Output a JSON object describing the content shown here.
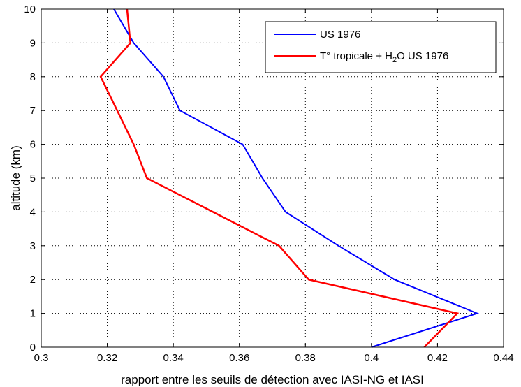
{
  "chart_data": {
    "type": "line",
    "title": "",
    "xlabel": "rapport entre les seuils de détection avec IASI-NG et IASI",
    "ylabel": "altitude (km)",
    "xlim": [
      0.3,
      0.44
    ],
    "ylim": [
      0,
      10
    ],
    "xticks": [
      0.3,
      0.32,
      0.34,
      0.36,
      0.38,
      0.4,
      0.42,
      0.44
    ],
    "xtick_labels": [
      "0.3",
      "0.32",
      "0.34",
      "0.36",
      "0.38",
      "0.4",
      "0.42",
      "0.44"
    ],
    "yticks": [
      0,
      1,
      2,
      3,
      4,
      5,
      6,
      7,
      8,
      9,
      10
    ],
    "ytick_labels": [
      "0",
      "1",
      "2",
      "3",
      "4",
      "5",
      "6",
      "7",
      "8",
      "9",
      "10"
    ],
    "grid": true,
    "legend_position": "top-right",
    "series": [
      {
        "name": "US 1976",
        "color": "#0000ff",
        "points": [
          {
            "x": 0.4,
            "y": 0
          },
          {
            "x": 0.432,
            "y": 1
          },
          {
            "x": 0.407,
            "y": 2
          },
          {
            "x": 0.39,
            "y": 3
          },
          {
            "x": 0.374,
            "y": 4
          },
          {
            "x": 0.367,
            "y": 5
          },
          {
            "x": 0.361,
            "y": 6
          },
          {
            "x": 0.342,
            "y": 7
          },
          {
            "x": 0.337,
            "y": 8
          },
          {
            "x": 0.328,
            "y": 9
          },
          {
            "x": 0.322,
            "y": 10
          }
        ]
      },
      {
        "name_parts": [
          "T° tropicale + H",
          "2",
          "O US 1976"
        ],
        "color": "#ff0000",
        "points": [
          {
            "x": 0.416,
            "y": 0
          },
          {
            "x": 0.426,
            "y": 1
          },
          {
            "x": 0.381,
            "y": 2
          },
          {
            "x": 0.372,
            "y": 3
          },
          {
            "x": 0.352,
            "y": 4
          },
          {
            "x": 0.332,
            "y": 5
          },
          {
            "x": 0.328,
            "y": 6
          },
          {
            "x": 0.323,
            "y": 7
          },
          {
            "x": 0.318,
            "y": 8
          },
          {
            "x": 0.327,
            "y": 9
          },
          {
            "x": 0.326,
            "y": 10
          }
        ]
      }
    ]
  }
}
